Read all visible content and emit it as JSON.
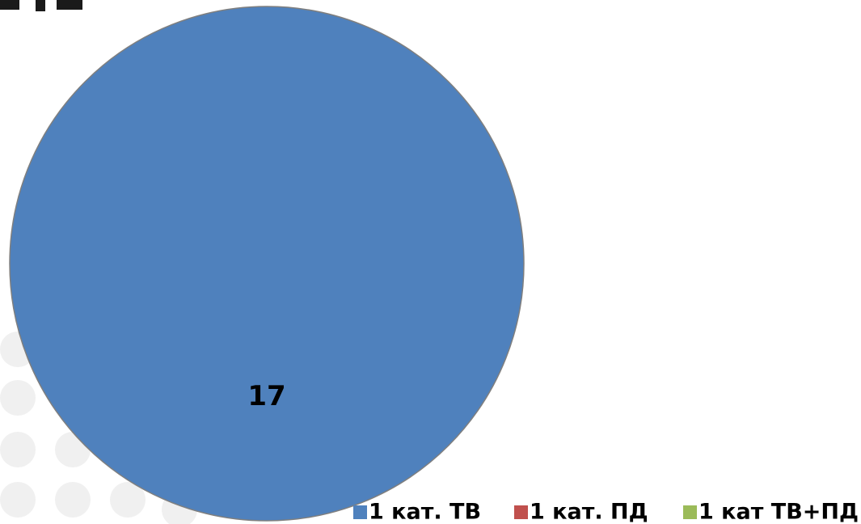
{
  "chart_data": {
    "type": "pie",
    "title": "",
    "categories": [
      "1 кат. ТВ",
      "1 кат. ПД",
      "1 кат ТВ+ПД"
    ],
    "values": [
      17,
      0,
      0
    ],
    "data_labels": [
      "17"
    ],
    "colors": [
      "#4F81BD",
      "#C0504D",
      "#9BBB59"
    ],
    "legend_position": "bottom-right"
  }
}
